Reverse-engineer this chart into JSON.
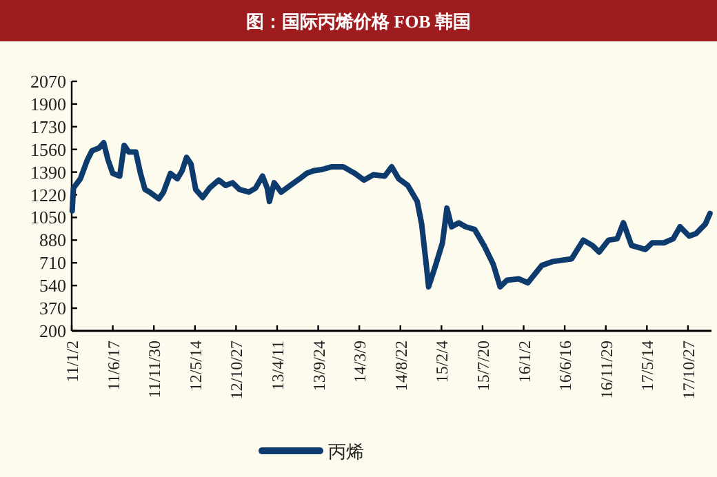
{
  "chart_data": {
    "type": "line",
    "title": "图：国际丙烯价格 FOB 韩国",
    "x": [
      "2011-01-04",
      "2011-01-09",
      "2011-02-06",
      "2011-03-06",
      "2011-03-25",
      "2011-04-22",
      "2011-05-11",
      "2011-05-29",
      "2011-06-17",
      "2011-07-15",
      "2011-08-02",
      "2011-08-21",
      "2011-09-18",
      "2011-10-07",
      "2011-10-25",
      "2011-11-13",
      "2011-12-20",
      "2012-01-08",
      "2012-02-05",
      "2012-03-04",
      "2012-03-23",
      "2012-04-10",
      "2012-04-28",
      "2012-05-17",
      "2012-06-14",
      "2012-07-12",
      "2012-08-18",
      "2012-09-15",
      "2012-10-13",
      "2012-11-10",
      "2012-12-18",
      "2013-01-14",
      "2013-02-11",
      "2013-03-02",
      "2013-03-11",
      "2013-03-30",
      "2013-04-27",
      "2013-06-03",
      "2013-07-11",
      "2013-08-08",
      "2013-09-05",
      "2013-10-11",
      "2013-11-18",
      "2014-01-03",
      "2014-02-19",
      "2014-03-28",
      "2014-05-05",
      "2014-06-20",
      "2014-07-18",
      "2014-08-15",
      "2014-09-21",
      "2014-10-29",
      "2014-11-16",
      "2014-12-05",
      "2014-12-14",
      "2015-01-11",
      "2015-02-08",
      "2015-02-26",
      "2015-03-17",
      "2015-04-15",
      "2015-05-13",
      "2015-06-18",
      "2015-07-26",
      "2015-09-01",
      "2015-09-29",
      "2015-10-27",
      "2015-12-13",
      "2016-01-19",
      "2016-03-15",
      "2016-04-30",
      "2016-07-14",
      "2016-08-30",
      "2016-10-06",
      "2016-11-02",
      "2016-12-10",
      "2017-01-14",
      "2017-02-08",
      "2017-03-13",
      "2017-05-08",
      "2017-06-05",
      "2017-07-22",
      "2017-08-28",
      "2017-09-25",
      "2017-11-01",
      "2017-11-29",
      "2018-01-05",
      "2018-01-24"
    ],
    "series": [
      {
        "name": "丙烯",
        "color": "#0d3b6e",
        "values": [
          1100,
          1270,
          1340,
          1480,
          1550,
          1570,
          1610,
          1480,
          1380,
          1360,
          1590,
          1540,
          1540,
          1380,
          1260,
          1240,
          1190,
          1240,
          1380,
          1340,
          1400,
          1500,
          1450,
          1260,
          1200,
          1270,
          1330,
          1290,
          1310,
          1260,
          1240,
          1270,
          1360,
          1270,
          1170,
          1310,
          1240,
          1290,
          1340,
          1380,
          1400,
          1410,
          1430,
          1430,
          1380,
          1330,
          1370,
          1360,
          1430,
          1340,
          1290,
          1170,
          1000,
          690,
          530,
          690,
          860,
          1120,
          980,
          1010,
          980,
          960,
          840,
          700,
          530,
          580,
          590,
          560,
          690,
          720,
          740,
          880,
          840,
          790,
          880,
          890,
          1010,
          840,
          810,
          860,
          860,
          890,
          980,
          910,
          930,
          1000,
          1080
        ]
      }
    ],
    "xlim": [
      "2011-01-02",
      "2018-01-30"
    ],
    "xticks": [
      {
        "value": "2011-01-02",
        "label": "11/1/2"
      },
      {
        "value": "2011-06-17",
        "label": "11/6/17"
      },
      {
        "value": "2011-11-30",
        "label": "11/11/30"
      },
      {
        "value": "2012-05-14",
        "label": "12/5/14"
      },
      {
        "value": "2012-10-27",
        "label": "12/10/27"
      },
      {
        "value": "2013-04-11",
        "label": "13/4/11"
      },
      {
        "value": "2013-09-24",
        "label": "13/9/24"
      },
      {
        "value": "2014-03-09",
        "label": "14/3/9"
      },
      {
        "value": "2014-08-22",
        "label": "14/8/22"
      },
      {
        "value": "2015-02-04",
        "label": "15/2/4"
      },
      {
        "value": "2015-07-20",
        "label": "15/7/20"
      },
      {
        "value": "2016-01-02",
        "label": "16/1/2"
      },
      {
        "value": "2016-06-16",
        "label": "16/6/16"
      },
      {
        "value": "2016-11-29",
        "label": "16/11/29"
      },
      {
        "value": "2017-05-14",
        "label": "17/5/14"
      },
      {
        "value": "2017-10-27",
        "label": "17/10/27"
      }
    ],
    "ylim": [
      200,
      2070
    ],
    "yticks": [
      200,
      370,
      540,
      710,
      880,
      1050,
      1220,
      1390,
      1560,
      1730,
      1900,
      2070
    ],
    "legend": "bottom"
  }
}
